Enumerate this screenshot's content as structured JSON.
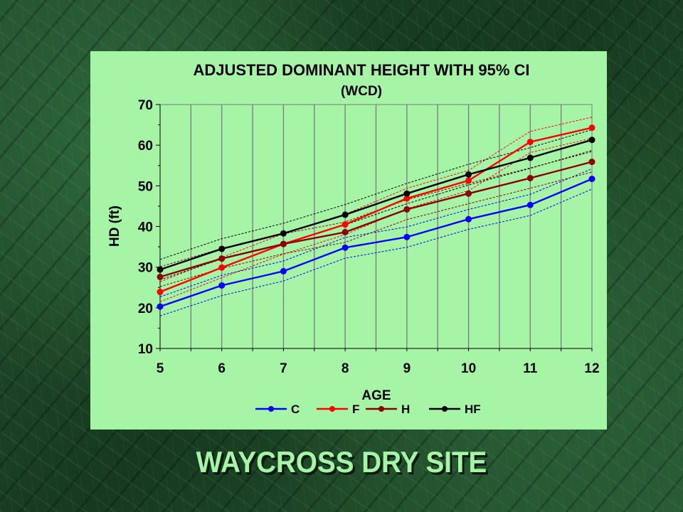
{
  "site_title": "WAYCROSS DRY SITE",
  "chart_data": {
    "type": "line",
    "title": "ADJUSTED DOMINANT HEIGHT WITH 95% CI",
    "subtitle": "(WCD)",
    "xlabel": "AGE",
    "ylabel": "HD (ft)",
    "x": [
      5,
      6,
      7,
      8,
      9,
      10,
      11,
      12
    ],
    "xlim": [
      5,
      12
    ],
    "ylim": [
      10,
      70
    ],
    "yticks": [
      10,
      20,
      30,
      40,
      50,
      60,
      70
    ],
    "grid": "vertical",
    "legend_position": "bottom",
    "series": [
      {
        "name": "C",
        "color": "#0000ff",
        "values": [
          20.3,
          25.5,
          29.0,
          34.8,
          37.4,
          41.8,
          45.3,
          51.7
        ],
        "lower": [
          18.0,
          23.0,
          26.6,
          32.2,
          34.9,
          39.3,
          42.7,
          49.2
        ],
        "upper": [
          22.7,
          28.0,
          31.5,
          37.3,
          39.9,
          44.2,
          47.9,
          54.2
        ]
      },
      {
        "name": "F",
        "color": "#ff0000",
        "values": [
          23.9,
          29.9,
          35.7,
          40.5,
          46.9,
          51.3,
          60.8,
          64.3
        ],
        "lower": [
          21.5,
          27.4,
          33.2,
          38.0,
          44.4,
          48.8,
          58.2,
          61.7
        ],
        "upper": [
          26.4,
          32.4,
          38.2,
          43.0,
          49.4,
          53.8,
          63.4,
          66.9
        ]
      },
      {
        "name": "H",
        "color": "#8b0000",
        "values": [
          27.6,
          32.1,
          35.7,
          38.6,
          44.2,
          48.1,
          51.9,
          55.9
        ],
        "lower": [
          25.2,
          29.7,
          33.3,
          36.1,
          41.7,
          45.6,
          49.4,
          53.4
        ],
        "upper": [
          30.1,
          34.6,
          38.2,
          41.1,
          46.6,
          50.6,
          54.4,
          58.4
        ]
      },
      {
        "name": "HF",
        "color": "#000000",
        "values": [
          29.4,
          34.5,
          38.3,
          42.9,
          48.1,
          52.8,
          56.9,
          61.3
        ],
        "lower": [
          26.9,
          32.0,
          35.8,
          40.4,
          45.6,
          50.2,
          54.3,
          58.7
        ],
        "upper": [
          31.9,
          37.0,
          40.8,
          45.4,
          50.6,
          55.3,
          59.4,
          63.8
        ]
      }
    ]
  }
}
